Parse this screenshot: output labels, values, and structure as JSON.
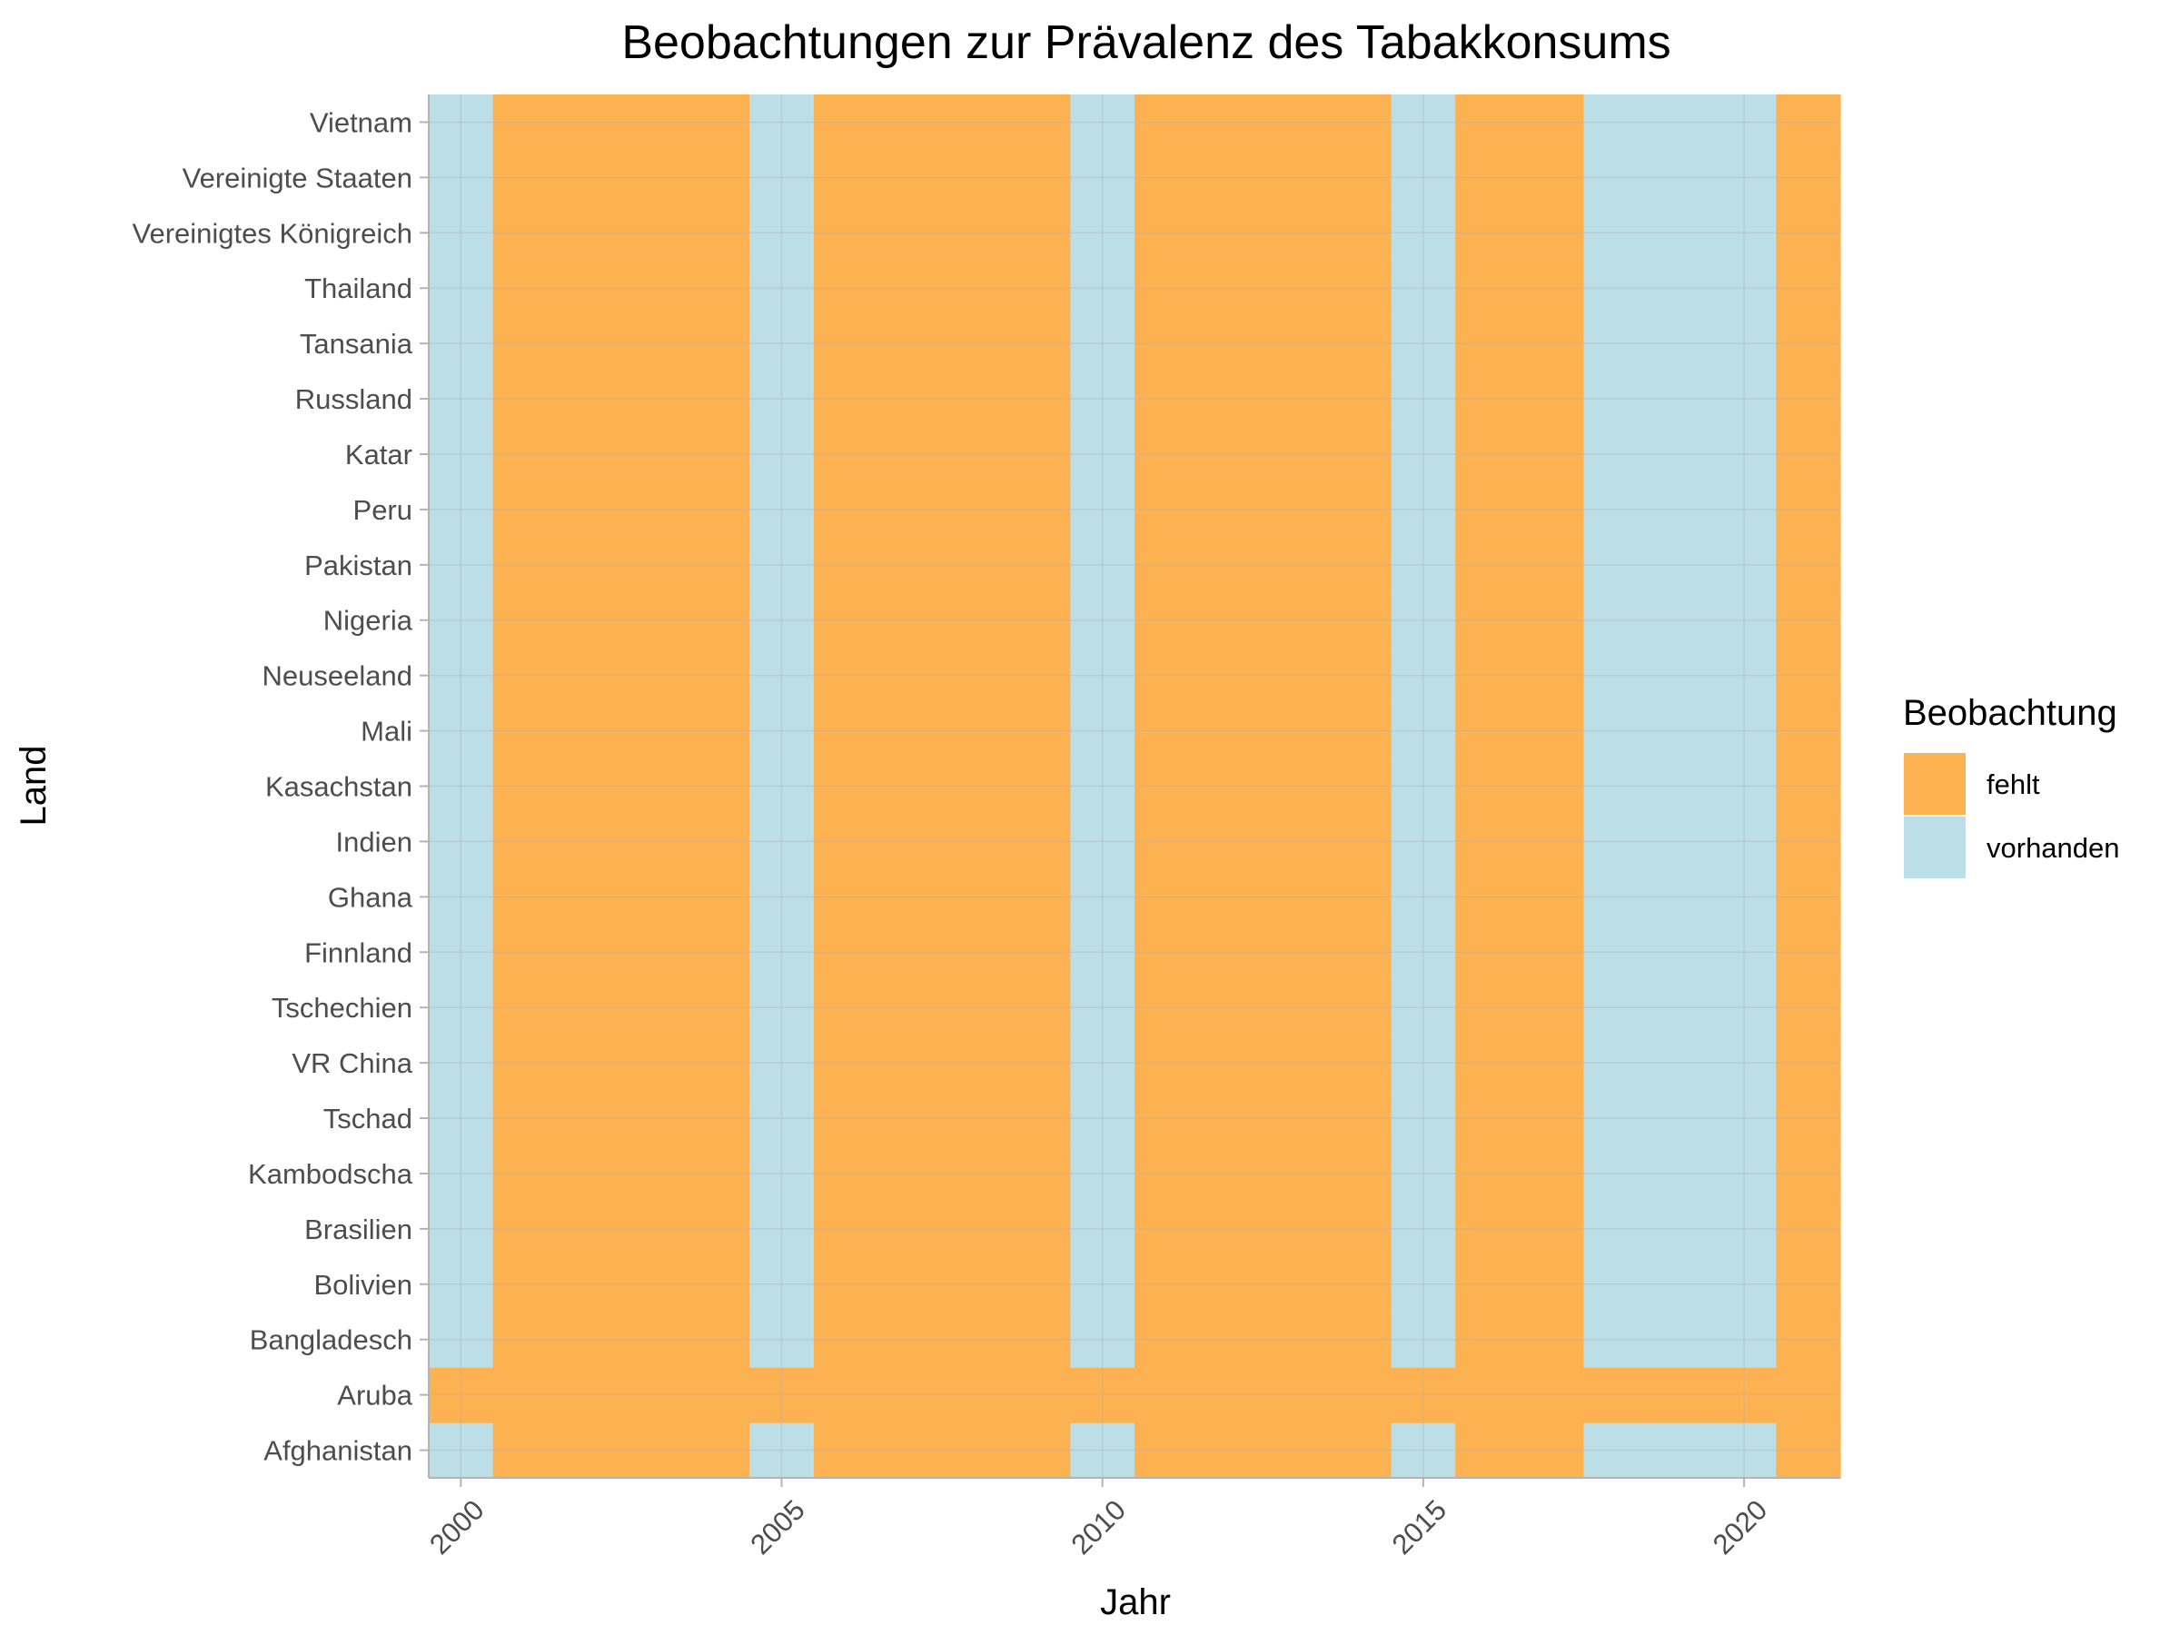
{
  "chart_data": {
    "type": "heatmap",
    "title": "Beobachtungen zur Prävalenz des Tabakkonsums",
    "xlabel": "Jahr",
    "ylabel": "Land",
    "x_ticks": [
      2000,
      2005,
      2010,
      2015,
      2020
    ],
    "xlim": [
      1999.5,
      2021.5
    ],
    "years": [
      2000,
      2001,
      2002,
      2003,
      2004,
      2005,
      2006,
      2007,
      2008,
      2009,
      2010,
      2011,
      2012,
      2013,
      2014,
      2015,
      2016,
      2017,
      2018,
      2019,
      2020,
      2021
    ],
    "countries": [
      "Afghanistan",
      "Aruba",
      "Bangladesch",
      "Bolivien",
      "Brasilien",
      "Kambodscha",
      "Tschad",
      "VR China",
      "Tschechien",
      "Finnland",
      "Ghana",
      "Indien",
      "Kasachstan",
      "Mali",
      "Neuseeland",
      "Nigeria",
      "Pakistan",
      "Peru",
      "Katar",
      "Russland",
      "Tansania",
      "Thailand",
      "Vereinigtes Königreich",
      "Vereinigte Staaten",
      "Vietnam"
    ],
    "observed_years": [
      2000,
      2005,
      2010,
      2015,
      2018,
      2019,
      2020
    ],
    "never_observed": [
      "Aruba"
    ],
    "legend": {
      "title": "Beobachtung",
      "position": "right",
      "entries": [
        {
          "key": "fehlt",
          "label": "fehlt",
          "color": "#fdb252"
        },
        {
          "key": "vorhanden",
          "label": "vorhanden",
          "color": "#bcdee6"
        }
      ]
    },
    "grid": true
  }
}
